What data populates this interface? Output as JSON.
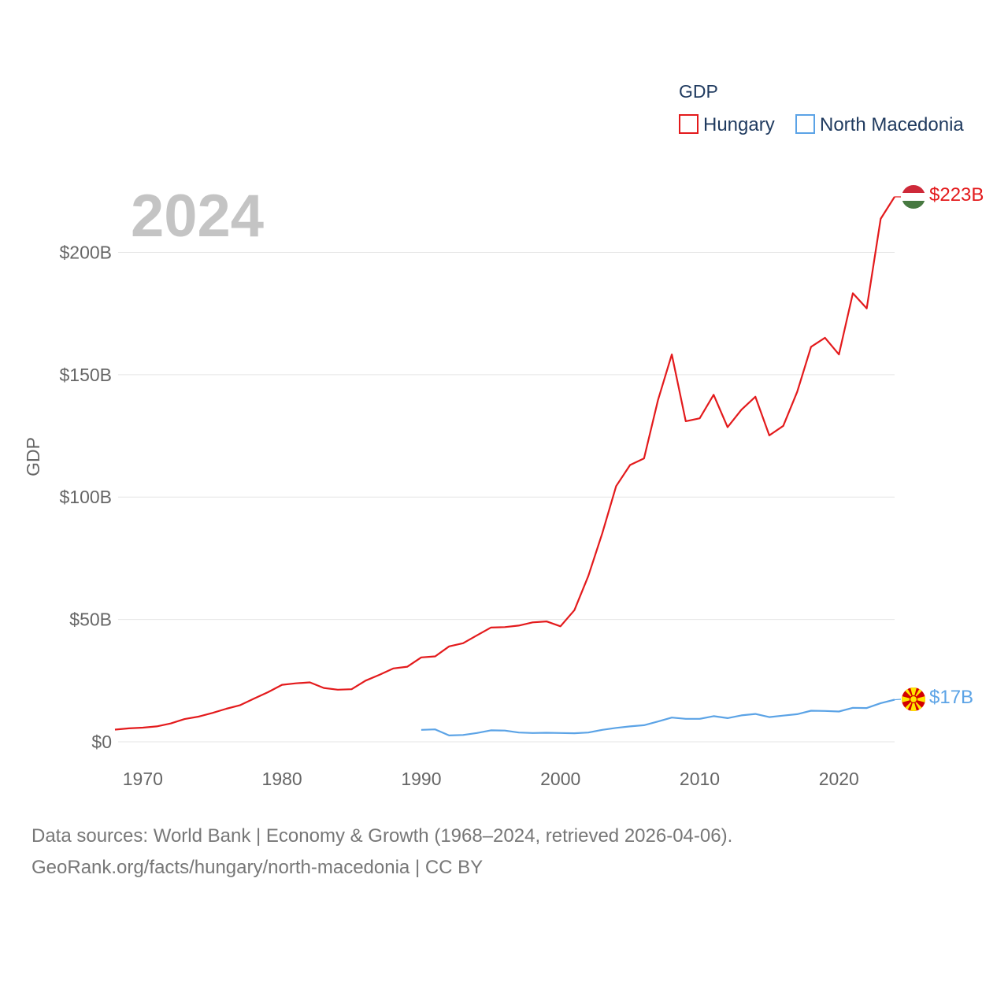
{
  "chart_data": {
    "type": "line",
    "title": "GDP",
    "year_label": "2024",
    "ylabel": "GDP",
    "xlim": [
      1968,
      2024
    ],
    "ylim": [
      0,
      223
    ],
    "x_ticks": [
      1970,
      1980,
      1990,
      2000,
      2010,
      2020
    ],
    "y_ticks": [
      0,
      50,
      100,
      150,
      200
    ],
    "y_tick_labels": [
      "$0",
      "$50B",
      "$100B",
      "$150B",
      "$200B"
    ],
    "legend_title": "GDP",
    "legend_position": "top-right",
    "grid": true,
    "series": [
      {
        "name": "Hungary",
        "color": "#e31a1c",
        "end_label": "$223B",
        "flag_icon": "hungary-flag-icon",
        "x": [
          1968,
          1969,
          1970,
          1971,
          1972,
          1973,
          1974,
          1975,
          1976,
          1977,
          1978,
          1979,
          1980,
          1981,
          1982,
          1983,
          1984,
          1985,
          1986,
          1987,
          1988,
          1989,
          1990,
          1991,
          1992,
          1993,
          1994,
          1995,
          1996,
          1997,
          1998,
          1999,
          2000,
          2001,
          2002,
          2003,
          2004,
          2005,
          2006,
          2007,
          2008,
          2009,
          2010,
          2011,
          2012,
          2013,
          2014,
          2015,
          2016,
          2017,
          2018,
          2019,
          2020,
          2021,
          2022,
          2023,
          2024
        ],
        "values": [
          5,
          5.5,
          5.8,
          6.3,
          7.5,
          9.3,
          10.3,
          11.8,
          13.5,
          15,
          17.7,
          20.3,
          23.3,
          23.9,
          24.3,
          22,
          21.3,
          21.5,
          25,
          27.4,
          30,
          30.7,
          34.5,
          34.9,
          39,
          40.3,
          43.5,
          46.7,
          46.9,
          47.5,
          48.8,
          49.2,
          47.2,
          53.8,
          67.8,
          85.2,
          104.5,
          113.1,
          115.8,
          139.6,
          158.3,
          131,
          132.2,
          141.8,
          128.6,
          135.7,
          141,
          125.2,
          129.1,
          143,
          161.4,
          165.1,
          158.3,
          183.3,
          177.1,
          213.7,
          222.7
        ]
      },
      {
        "name": "North Macedonia",
        "color": "#5ba3e6",
        "end_label": "$17B",
        "flag_icon": "north-macedonia-flag-icon",
        "x": [
          1990,
          1991,
          1992,
          1993,
          1994,
          1995,
          1996,
          1997,
          1998,
          1999,
          2000,
          2001,
          2002,
          2003,
          2004,
          2005,
          2006,
          2007,
          2008,
          2009,
          2010,
          2011,
          2012,
          2013,
          2014,
          2015,
          2016,
          2017,
          2018,
          2019,
          2020,
          2021,
          2022,
          2023,
          2024
        ],
        "values": [
          4.9,
          5.1,
          2.6,
          2.8,
          3.6,
          4.7,
          4.6,
          3.8,
          3.6,
          3.7,
          3.6,
          3.5,
          3.8,
          4.9,
          5.7,
          6.3,
          6.8,
          8.3,
          9.9,
          9.4,
          9.4,
          10.5,
          9.7,
          10.8,
          11.4,
          10.1,
          10.7,
          11.3,
          12.7,
          12.6,
          12.4,
          13.9,
          13.8,
          15.8,
          17.2
        ]
      }
    ]
  },
  "source": {
    "line1": "Data sources: World Bank | Economy & Growth (1968–2024, retrieved 2026-04-06).",
    "line2": "GeoRank.org/facts/hungary/north-macedonia | CC BY"
  }
}
